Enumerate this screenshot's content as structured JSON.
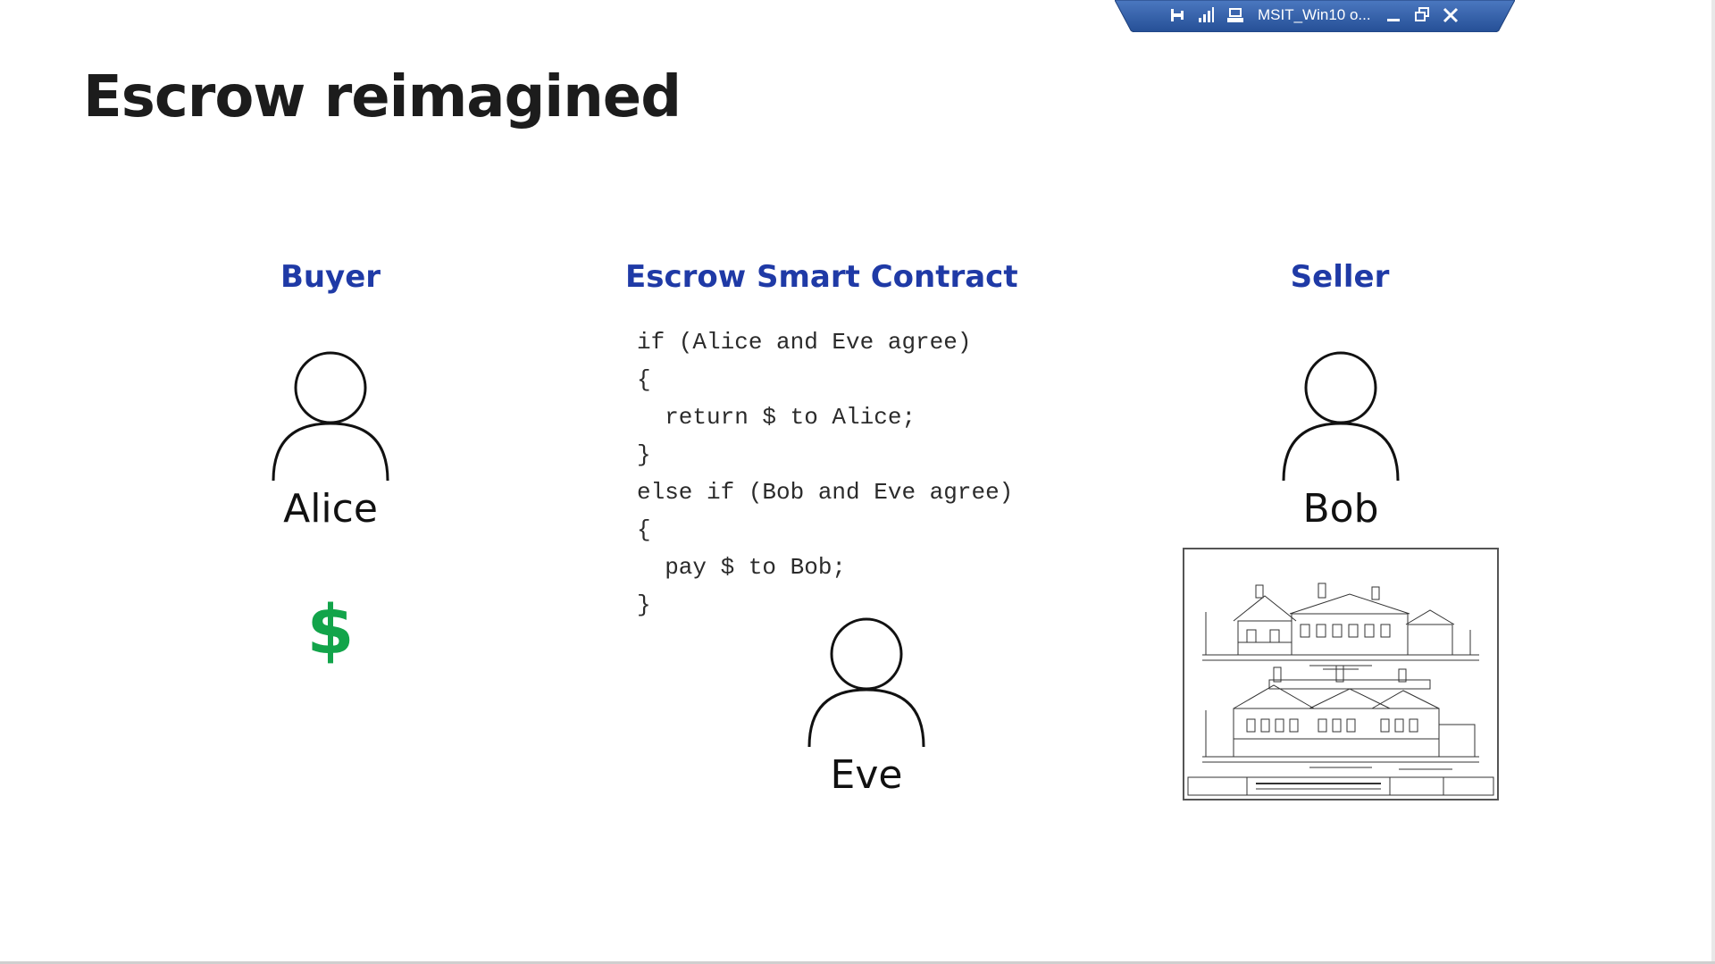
{
  "connection_bar": {
    "title": "MSIT_Win10 o...",
    "icons": [
      "pin-icon",
      "signal-icon",
      "remote-desktop-icon",
      "minimize-icon",
      "restore-icon",
      "close-icon"
    ],
    "color": "#2b5797"
  },
  "slide": {
    "title": "Escrow reimagined",
    "columns": {
      "buyer": {
        "heading": "Buyer",
        "name": "Alice",
        "asset_symbol": "$"
      },
      "contract": {
        "heading": "Escrow Smart Contract",
        "code_lines": [
          "if (Alice and Eve agree)",
          "{",
          "  return $ to Alice;",
          "}",
          "else if (Bob and Eve agree)",
          "{",
          "  pay $ to Bob;",
          "}"
        ],
        "arbiter_name": "Eve"
      },
      "seller": {
        "heading": "Seller",
        "name": "Bob"
      }
    },
    "colors": {
      "heading": "#1f3aa6",
      "dollar": "#12a44a",
      "text": "#1c1c1c"
    }
  }
}
